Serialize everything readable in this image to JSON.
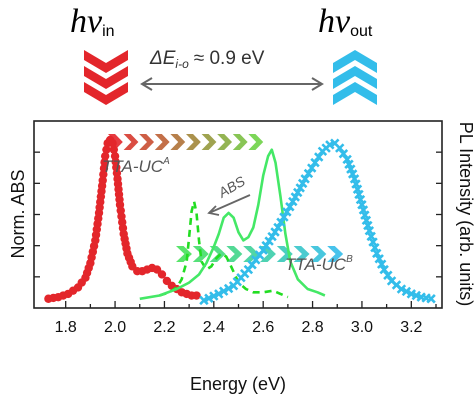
{
  "header": {
    "hv_in": {
      "h": "h",
      "nu": "ν",
      "sub": "in",
      "color": "#e3262b"
    },
    "hv_out": {
      "h": "h",
      "nu": "ν",
      "sub": "out",
      "color": "#33bdea"
    },
    "delta_label": "ΔE",
    "delta_sub": "i-o",
    "delta_value": "≈ 0.9 eV"
  },
  "chart_data": {
    "type": "line",
    "xlabel": "Energy (eV)",
    "ylabel_left": "Norm. ABS",
    "ylabel_right": "PL Intensity (arb. units)",
    "xlim": [
      1.7,
      3.3
    ],
    "ylim": [
      0,
      1.08
    ],
    "x_ticks": [
      "1.8",
      "2.0",
      "2.2",
      "2.4",
      "2.6",
      "2.8",
      "3.0",
      "3.2"
    ],
    "grid": false,
    "annotations": {
      "tta_uc_a": {
        "main": "TTA-UC",
        "sup": "A"
      },
      "tta_uc_b": {
        "main": "TTA-UC",
        "sup": "B"
      },
      "abs": "ABS"
    },
    "series": [
      {
        "key": "red_pl",
        "color": "#e3262b",
        "style": "dots",
        "points": [
          [
            1.73,
            0.02
          ],
          [
            1.77,
            0.03
          ],
          [
            1.81,
            0.05
          ],
          [
            1.85,
            0.09
          ],
          [
            1.88,
            0.15
          ],
          [
            1.9,
            0.24
          ],
          [
            1.92,
            0.38
          ],
          [
            1.935,
            0.55
          ],
          [
            1.95,
            0.75
          ],
          [
            1.96,
            0.9
          ],
          [
            1.97,
            0.98
          ],
          [
            1.98,
            1.0
          ],
          [
            1.99,
            0.98
          ],
          [
            2.0,
            0.9
          ],
          [
            2.01,
            0.76
          ],
          [
            2.02,
            0.6
          ],
          [
            2.035,
            0.42
          ],
          [
            2.05,
            0.3
          ],
          [
            2.07,
            0.22
          ],
          [
            2.09,
            0.19
          ],
          [
            2.11,
            0.19
          ],
          [
            2.13,
            0.2
          ],
          [
            2.15,
            0.21
          ],
          [
            2.17,
            0.2
          ],
          [
            2.19,
            0.17
          ],
          [
            2.21,
            0.13
          ],
          [
            2.23,
            0.1
          ],
          [
            2.25,
            0.08
          ],
          [
            2.27,
            0.06
          ],
          [
            2.29,
            0.05
          ],
          [
            2.31,
            0.04
          ],
          [
            2.33,
            0.04
          ]
        ]
      },
      {
        "key": "green_abs_dashed",
        "color": "#22dd22",
        "style": "dashed",
        "points": [
          [
            2.18,
            0.04
          ],
          [
            2.22,
            0.06
          ],
          [
            2.25,
            0.09
          ],
          [
            2.27,
            0.14
          ],
          [
            2.29,
            0.25
          ],
          [
            2.3,
            0.4
          ],
          [
            2.31,
            0.56
          ],
          [
            2.32,
            0.62
          ],
          [
            2.33,
            0.55
          ],
          [
            2.34,
            0.38
          ],
          [
            2.35,
            0.25
          ],
          [
            2.37,
            0.2
          ],
          [
            2.39,
            0.22
          ],
          [
            2.41,
            0.27
          ],
          [
            2.43,
            0.3
          ],
          [
            2.45,
            0.28
          ],
          [
            2.47,
            0.22
          ],
          [
            2.5,
            0.12
          ],
          [
            2.53,
            0.08
          ],
          [
            2.56,
            0.06
          ],
          [
            2.6,
            0.06
          ],
          [
            2.64,
            0.07
          ],
          [
            2.67,
            0.05
          ],
          [
            2.7,
            0.03
          ]
        ]
      },
      {
        "key": "green_pl_solid",
        "color": "#44e866",
        "style": "solid",
        "points": [
          [
            2.1,
            0.02
          ],
          [
            2.18,
            0.04
          ],
          [
            2.25,
            0.08
          ],
          [
            2.3,
            0.12
          ],
          [
            2.34,
            0.17
          ],
          [
            2.37,
            0.24
          ],
          [
            2.4,
            0.34
          ],
          [
            2.42,
            0.42
          ],
          [
            2.44,
            0.52
          ],
          [
            2.46,
            0.55
          ],
          [
            2.48,
            0.52
          ],
          [
            2.5,
            0.43
          ],
          [
            2.52,
            0.38
          ],
          [
            2.54,
            0.4
          ],
          [
            2.56,
            0.46
          ],
          [
            2.58,
            0.6
          ],
          [
            2.6,
            0.78
          ],
          [
            2.62,
            0.9
          ],
          [
            2.635,
            0.94
          ],
          [
            2.65,
            0.86
          ],
          [
            2.67,
            0.65
          ],
          [
            2.69,
            0.42
          ],
          [
            2.71,
            0.25
          ],
          [
            2.74,
            0.14
          ],
          [
            2.78,
            0.08
          ],
          [
            2.82,
            0.06
          ],
          [
            2.85,
            0.04
          ]
        ]
      },
      {
        "key": "blue_pl",
        "color": "#33bdea",
        "style": "crosses",
        "points": [
          [
            2.36,
            0.01
          ],
          [
            2.42,
            0.05
          ],
          [
            2.48,
            0.1
          ],
          [
            2.54,
            0.2
          ],
          [
            2.6,
            0.32
          ],
          [
            2.66,
            0.46
          ],
          [
            2.72,
            0.62
          ],
          [
            2.77,
            0.76
          ],
          [
            2.81,
            0.86
          ],
          [
            2.84,
            0.93
          ],
          [
            2.87,
            0.97
          ],
          [
            2.89,
            0.98
          ],
          [
            2.91,
            0.95
          ],
          [
            2.94,
            0.88
          ],
          [
            2.97,
            0.76
          ],
          [
            3.0,
            0.6
          ],
          [
            3.03,
            0.44
          ],
          [
            3.06,
            0.3
          ],
          [
            3.09,
            0.2
          ],
          [
            3.12,
            0.13
          ],
          [
            3.16,
            0.08
          ],
          [
            3.2,
            0.05
          ],
          [
            3.24,
            0.03
          ],
          [
            3.28,
            0.02
          ]
        ]
      }
    ]
  }
}
